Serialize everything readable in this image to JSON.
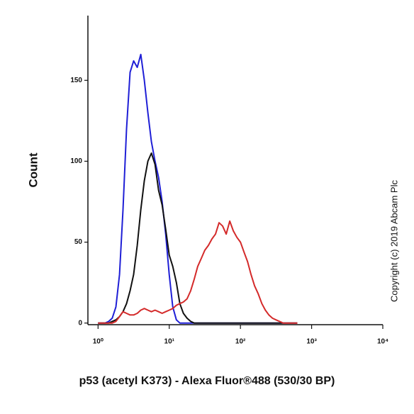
{
  "chart_data": {
    "type": "line",
    "xscale": "log",
    "xlabel": "p53 (acetyl K373) - Alexa Fluor®488 (530/30 BP)",
    "ylabel": "Count",
    "annotation": "Copyright (c) 2019 Abcam Plc",
    "x": [
      1,
      1.12,
      1.26,
      1.41,
      1.58,
      1.78,
      2,
      2.24,
      2.51,
      2.82,
      3.16,
      3.55,
      3.98,
      4.47,
      5.01,
      5.62,
      6.31,
      7.08,
      7.94,
      8.91,
      10,
      11.2,
      12.6,
      14.1,
      15.8,
      17.8,
      20,
      22.4,
      25.1,
      28.2,
      31.6,
      35.5,
      39.8,
      44.7,
      50.1,
      56.2,
      63.1,
      70.8,
      79.4,
      89.1,
      100,
      112,
      126,
      141,
      158,
      178,
      200,
      224,
      251,
      282,
      316,
      355,
      398,
      447,
      501,
      562,
      631
    ],
    "series": [
      {
        "color": "#1f1fd6",
        "values": [
          0,
          0,
          0,
          1,
          3,
          10,
          30,
          70,
          120,
          155,
          162,
          158,
          166,
          150,
          130,
          112,
          100,
          90,
          75,
          55,
          30,
          10,
          2,
          0,
          0,
          0,
          0,
          0,
          0,
          0,
          0,
          0,
          0,
          0,
          0,
          0,
          0,
          0,
          0,
          0,
          0,
          0,
          0,
          0,
          0,
          0,
          0,
          0,
          0,
          0,
          0,
          0,
          0,
          0,
          0,
          0,
          0
        ]
      },
      {
        "color": "#111111",
        "values": [
          0,
          0,
          0,
          0,
          1,
          2,
          4,
          7,
          12,
          20,
          30,
          48,
          70,
          88,
          100,
          105,
          98,
          82,
          73,
          58,
          42,
          35,
          25,
          12,
          6,
          3,
          1,
          0,
          0,
          0,
          0,
          0,
          0,
          0,
          0,
          0,
          0,
          0,
          0,
          0,
          0,
          0,
          0,
          0,
          0,
          0,
          0,
          0,
          0,
          0,
          0,
          0,
          0,
          0,
          0,
          0,
          0
        ]
      },
      {
        "color": "#d42a2a",
        "values": [
          0,
          0,
          0,
          0,
          0,
          1,
          4,
          7,
          6,
          5,
          5,
          6,
          8,
          9,
          8,
          7,
          8,
          7,
          6,
          7,
          8,
          9,
          11,
          12,
          13,
          15,
          20,
          27,
          35,
          40,
          45,
          48,
          52,
          55,
          62,
          60,
          55,
          63,
          57,
          53,
          50,
          44,
          38,
          30,
          23,
          18,
          12,
          8,
          5,
          3,
          2,
          1,
          0,
          0,
          0,
          0,
          0
        ]
      }
    ],
    "xlim": [
      0.72,
      10000
    ],
    "ylim": [
      -1,
      190
    ],
    "xticks": [
      {
        "value": 1,
        "label": "10⁰"
      },
      {
        "value": 10,
        "label": "10¹"
      },
      {
        "value": 100,
        "label": "10²"
      },
      {
        "value": 1000,
        "label": "10³"
      },
      {
        "value": 10000,
        "label": "10⁴"
      }
    ],
    "yticks": [
      0,
      50,
      100,
      150
    ]
  }
}
